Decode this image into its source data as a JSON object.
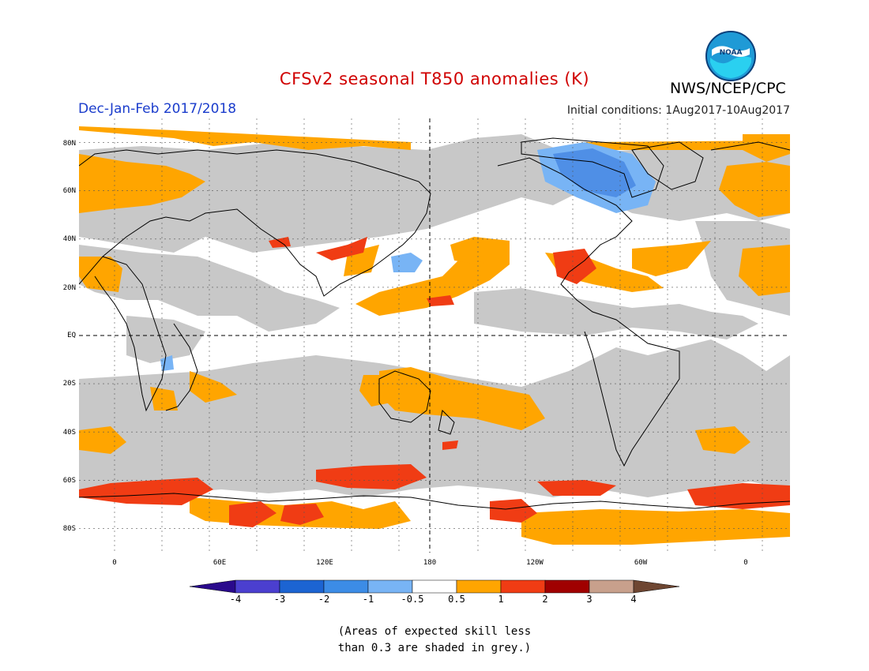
{
  "header": {
    "title": "CFSv2 seasonal T850 anomalies (K)",
    "period": "Dec-Jan-Feb 2017/2018",
    "initial_conditions": "Initial conditions: 1Aug2017-10Aug2017",
    "agency": "NWS/NCEP/CPC",
    "logo_text": "NOAA"
  },
  "map": {
    "lat_labels": [
      "80N",
      "60N",
      "40N",
      "20N",
      "EQ",
      "20S",
      "40S",
      "60S",
      "80S"
    ],
    "lon_labels": [
      "0",
      "60E",
      "120E",
      "180",
      "120W",
      "60W",
      "0"
    ],
    "colors": {
      "ocean_background": "#ffffff",
      "low_skill_grey": "#c8c8c8",
      "neg_0_5_to_1": "#78b4f5",
      "neg_1_to_2": "#4f8fe6",
      "pos_0_5_to_1": "#ffa500",
      "pos_1_to_2": "#f03c14",
      "pos_2_to_3": "#a00000"
    }
  },
  "colorbar": {
    "labels": [
      "-4",
      "-3",
      "-2",
      "-1",
      "-0.5",
      "0.5",
      "1",
      "2",
      "3",
      "4"
    ],
    "colors": [
      "#2a0a8c",
      "#4b3fcf",
      "#1c64d2",
      "#3c8ce6",
      "#78b4f5",
      "#ffffff",
      "#ffa500",
      "#f03c14",
      "#a00000",
      "#c8a08c",
      "#6e4632"
    ]
  },
  "note": {
    "line1": "(Areas of expected skill less",
    "line2": "than 0.3 are shaded in grey.)"
  }
}
